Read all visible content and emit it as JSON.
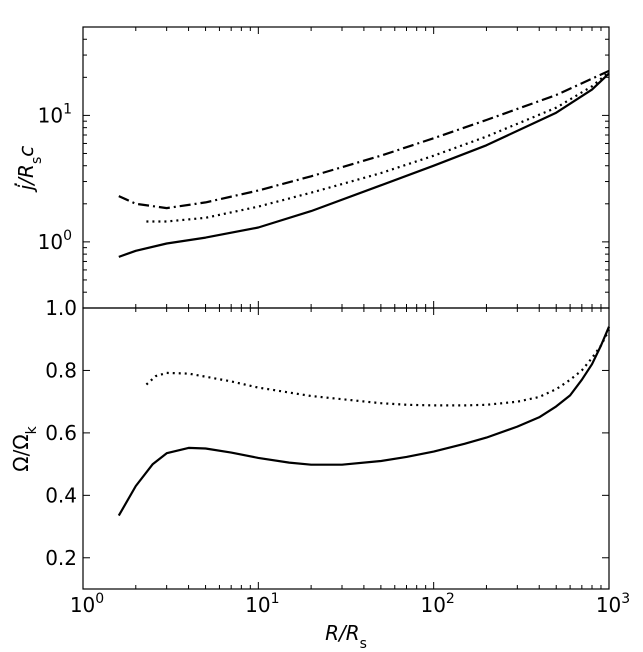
{
  "chart_data": [
    {
      "type": "line",
      "panel": "top",
      "xscale": "log",
      "yscale": "log",
      "xlim": [
        1,
        1000
      ],
      "ylim": [
        0.3,
        50
      ],
      "ylabel": "j/R_s c",
      "yticks": [
        {
          "value": 1,
          "base": "10",
          "exp": "0"
        },
        {
          "value": 10,
          "base": "10",
          "exp": "1"
        }
      ],
      "grid": false,
      "series": [
        {
          "style": "solid",
          "points": [
            [
              1.6,
              0.76
            ],
            [
              2.0,
              0.85
            ],
            [
              3.0,
              0.97
            ],
            [
              5.0,
              1.08
            ],
            [
              10.0,
              1.3
            ],
            [
              20.0,
              1.75
            ],
            [
              50.0,
              2.8
            ],
            [
              100.0,
              4.0
            ],
            [
              200.0,
              5.8
            ],
            [
              500.0,
              10.5
            ],
            [
              800.0,
              16.0
            ],
            [
              1000.0,
              21.5
            ]
          ]
        },
        {
          "style": "dotted",
          "points": [
            [
              2.3,
              1.45
            ],
            [
              3.0,
              1.45
            ],
            [
              5.0,
              1.55
            ],
            [
              10.0,
              1.9
            ],
            [
              20.0,
              2.45
            ],
            [
              50.0,
              3.5
            ],
            [
              100.0,
              4.8
            ],
            [
              200.0,
              6.8
            ],
            [
              500.0,
              11.5
            ],
            [
              800.0,
              17.0
            ],
            [
              1000.0,
              22.0
            ]
          ]
        },
        {
          "style": "dashdot",
          "points": [
            [
              1.6,
              2.3
            ],
            [
              2.0,
              2.0
            ],
            [
              3.0,
              1.85
            ],
            [
              5.0,
              2.05
            ],
            [
              10.0,
              2.55
            ],
            [
              20.0,
              3.3
            ],
            [
              50.0,
              4.8
            ],
            [
              100.0,
              6.6
            ],
            [
              200.0,
              9.2
            ],
            [
              500.0,
              14.5
            ],
            [
              1000.0,
              22.5
            ]
          ]
        }
      ]
    },
    {
      "type": "line",
      "panel": "bottom",
      "xscale": "log",
      "yscale": "linear",
      "xlim": [
        1,
        1000
      ],
      "ylim": [
        0.1,
        1.0
      ],
      "xlabel": "R/R_s",
      "ylabel": "Ω/Ω_k",
      "yticks": [
        "0.2",
        "0.4",
        "0.6",
        "0.8",
        "1.0"
      ],
      "xticks": [
        {
          "value": 1,
          "base": "10",
          "exp": "0"
        },
        {
          "value": 10,
          "base": "10",
          "exp": "1"
        },
        {
          "value": 100,
          "base": "10",
          "exp": "2"
        },
        {
          "value": 1000,
          "base": "10",
          "exp": "3"
        }
      ],
      "grid": false,
      "series": [
        {
          "style": "solid",
          "points": [
            [
              1.6,
              0.335
            ],
            [
              2.0,
              0.43
            ],
            [
              2.5,
              0.5
            ],
            [
              3.0,
              0.535
            ],
            [
              4.0,
              0.552
            ],
            [
              5.0,
              0.55
            ],
            [
              7.0,
              0.537
            ],
            [
              10.0,
              0.52
            ],
            [
              15.0,
              0.505
            ],
            [
              20.0,
              0.498
            ],
            [
              30.0,
              0.498
            ],
            [
              50.0,
              0.51
            ],
            [
              70.0,
              0.523
            ],
            [
              100.0,
              0.54
            ],
            [
              150.0,
              0.565
            ],
            [
              200.0,
              0.585
            ],
            [
              300.0,
              0.62
            ],
            [
              400.0,
              0.65
            ],
            [
              500.0,
              0.685
            ],
            [
              600.0,
              0.72
            ],
            [
              700.0,
              0.77
            ],
            [
              800.0,
              0.82
            ],
            [
              900.0,
              0.88
            ],
            [
              1000.0,
              0.94
            ]
          ]
        },
        {
          "style": "dotted",
          "points": [
            [
              2.3,
              0.755
            ],
            [
              2.6,
              0.782
            ],
            [
              3.0,
              0.792
            ],
            [
              4.0,
              0.79
            ],
            [
              5.0,
              0.78
            ],
            [
              7.0,
              0.765
            ],
            [
              10.0,
              0.745
            ],
            [
              20.0,
              0.718
            ],
            [
              30.0,
              0.708
            ],
            [
              50.0,
              0.695
            ],
            [
              70.0,
              0.69
            ],
            [
              100.0,
              0.688
            ],
            [
              150.0,
              0.688
            ],
            [
              200.0,
              0.69
            ],
            [
              300.0,
              0.7
            ],
            [
              400.0,
              0.715
            ],
            [
              500.0,
              0.74
            ],
            [
              600.0,
              0.77
            ],
            [
              700.0,
              0.8
            ],
            [
              800.0,
              0.84
            ],
            [
              900.0,
              0.88
            ],
            [
              1000.0,
              0.93
            ]
          ]
        }
      ]
    }
  ]
}
